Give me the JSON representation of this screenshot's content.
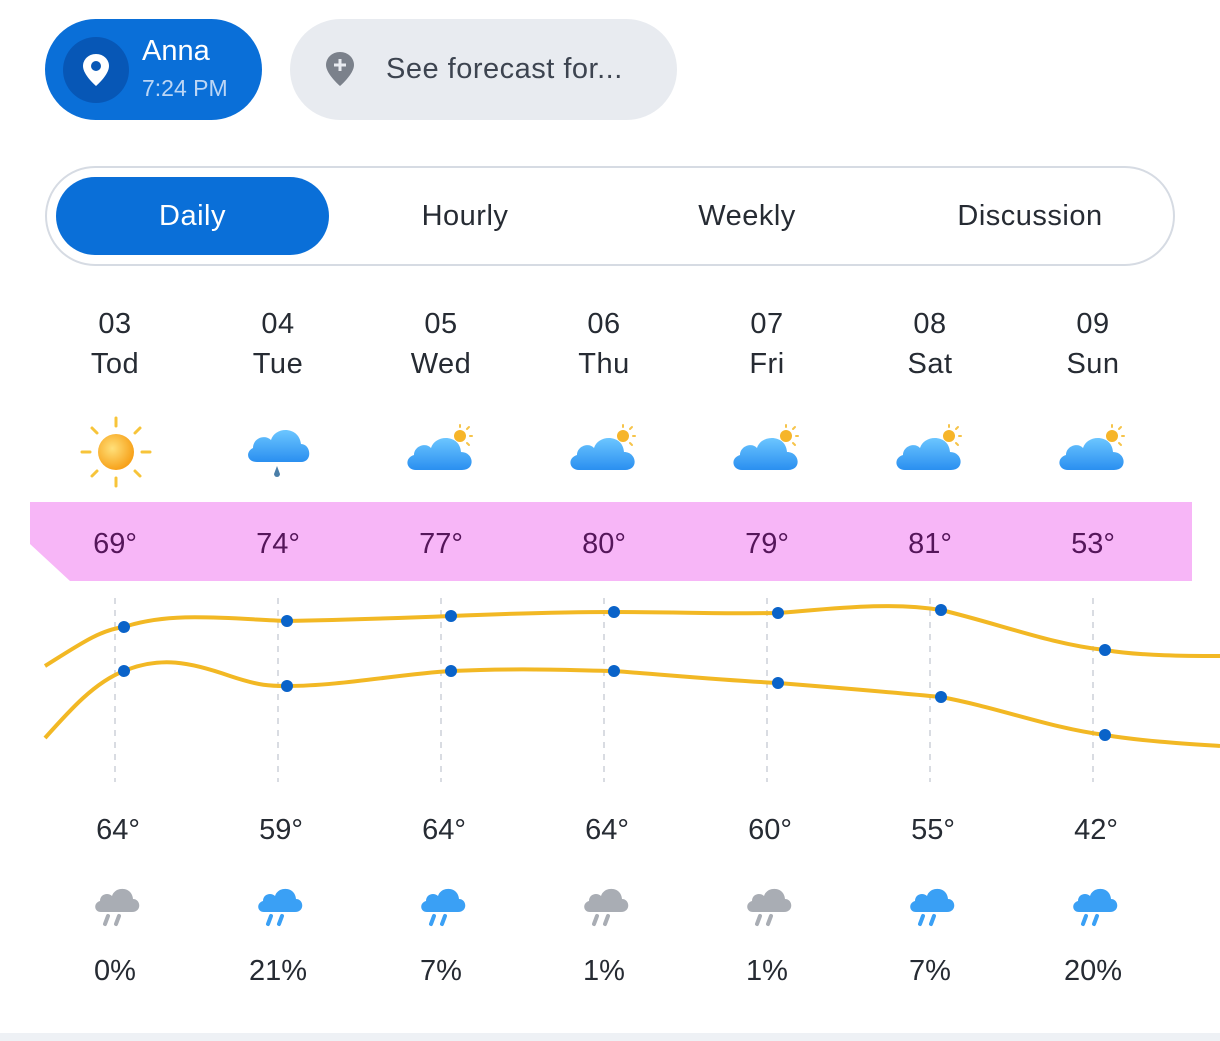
{
  "location": {
    "name": "Anna",
    "time": "7:24 PM",
    "icon": "location-pin-icon"
  },
  "search": {
    "placeholder": "See forecast for...",
    "icon": "add-location-icon"
  },
  "tabs": [
    {
      "label": "Daily",
      "active": true
    },
    {
      "label": "Hourly",
      "active": false
    },
    {
      "label": "Weekly",
      "active": false
    },
    {
      "label": "Discussion",
      "active": false
    }
  ],
  "days": [
    {
      "date": "03",
      "weekday": "Tod",
      "condition_icon": "sunny-icon",
      "high": "69°",
      "low": "64°",
      "precip_icon": "rain-gray-icon",
      "precip": "0%"
    },
    {
      "date": "04",
      "weekday": "Tue",
      "condition_icon": "cloud-drizzle-icon",
      "high": "74°",
      "low": "59°",
      "precip_icon": "rain-blue-icon",
      "precip": "21%"
    },
    {
      "date": "05",
      "weekday": "Wed",
      "condition_icon": "partly-cloudy-icon",
      "high": "77°",
      "low": "64°",
      "precip_icon": "rain-blue-icon",
      "precip": "7%"
    },
    {
      "date": "06",
      "weekday": "Thu",
      "condition_icon": "partly-cloudy-icon",
      "high": "80°",
      "low": "64°",
      "precip_icon": "rain-gray-icon",
      "precip": "1%"
    },
    {
      "date": "07",
      "weekday": "Fri",
      "condition_icon": "partly-cloudy-icon",
      "high": "79°",
      "low": "60°",
      "precip_icon": "rain-gray-icon",
      "precip": "1%"
    },
    {
      "date": "08",
      "weekday": "Sat",
      "condition_icon": "partly-cloudy-icon",
      "high": "81°",
      "low": "55°",
      "precip_icon": "rain-blue-icon",
      "precip": "7%"
    },
    {
      "date": "09",
      "weekday": "Sun",
      "condition_icon": "partly-cloudy-icon",
      "high": "53°",
      "low": "42°",
      "precip_icon": "rain-blue-icon",
      "precip": "20%"
    }
  ],
  "colors": {
    "accent": "#0a6fd8",
    "high_band": "#f7b6f7",
    "curve": "#f2b824",
    "point": "#0a63c9"
  }
}
